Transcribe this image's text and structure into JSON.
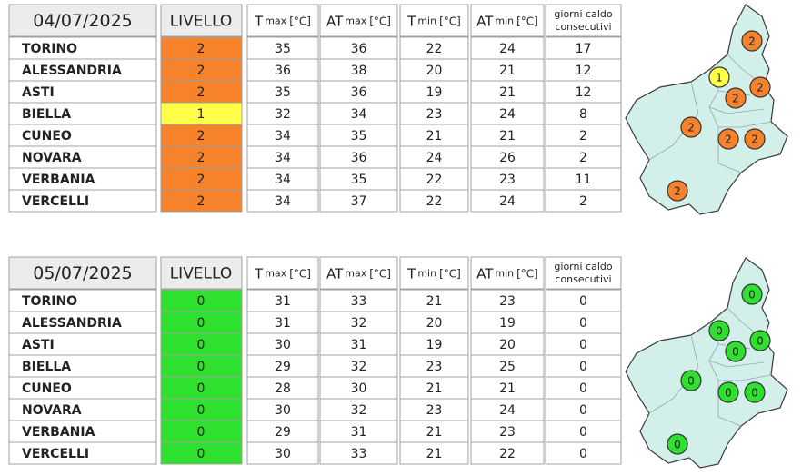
{
  "level_colors": {
    "0": "#2fe02f",
    "1": "#ffff4a",
    "2": "#f6822c"
  },
  "headers": {
    "level": "LIVELLO",
    "tmax": {
      "base": "T",
      "sub": "max",
      "unit": "[°C]"
    },
    "atmax": {
      "base": "AT",
      "sub": "max",
      "unit": "[°C]"
    },
    "tmin": {
      "base": "T",
      "sub": "min",
      "unit": "[°C]"
    },
    "atmin": {
      "base": "AT",
      "sub": "min",
      "unit": "[°C]"
    },
    "days": [
      "giorni caldo",
      "consecutivi"
    ]
  },
  "tables": [
    {
      "date": "04/07/2025",
      "rows": [
        {
          "city": "TORINO",
          "level": 2,
          "tmax": 35,
          "atmax": 36,
          "tmin": 22,
          "atmin": 24,
          "days": 17
        },
        {
          "city": "ALESSANDRIA",
          "level": 2,
          "tmax": 36,
          "atmax": 38,
          "tmin": 20,
          "atmin": 21,
          "days": 12
        },
        {
          "city": "ASTI",
          "level": 2,
          "tmax": 35,
          "atmax": 36,
          "tmin": 19,
          "atmin": 21,
          "days": 12
        },
        {
          "city": "BIELLA",
          "level": 1,
          "tmax": 32,
          "atmax": 34,
          "tmin": 23,
          "atmin": 24,
          "days": 8
        },
        {
          "city": "CUNEO",
          "level": 2,
          "tmax": 34,
          "atmax": 35,
          "tmin": 21,
          "atmin": 21,
          "days": 2
        },
        {
          "city": "NOVARA",
          "level": 2,
          "tmax": 34,
          "atmax": 36,
          "tmin": 24,
          "atmin": 26,
          "days": 2
        },
        {
          "city": "VERBANIA",
          "level": 2,
          "tmax": 34,
          "atmax": 35,
          "tmin": 22,
          "atmin": 23,
          "days": 11
        },
        {
          "city": "VERCELLI",
          "level": 2,
          "tmax": 34,
          "atmax": 37,
          "tmin": 22,
          "atmin": 24,
          "days": 2
        }
      ]
    },
    {
      "date": "05/07/2025",
      "rows": [
        {
          "city": "TORINO",
          "level": 0,
          "tmax": 31,
          "atmax": 33,
          "tmin": 21,
          "atmin": 23,
          "days": 0
        },
        {
          "city": "ALESSANDRIA",
          "level": 0,
          "tmax": 31,
          "atmax": 32,
          "tmin": 20,
          "atmin": 19,
          "days": 0
        },
        {
          "city": "ASTI",
          "level": 0,
          "tmax": 30,
          "atmax": 31,
          "tmin": 19,
          "atmin": 20,
          "days": 0
        },
        {
          "city": "BIELLA",
          "level": 0,
          "tmax": 29,
          "atmax": 32,
          "tmin": 23,
          "atmin": 25,
          "days": 0
        },
        {
          "city": "CUNEO",
          "level": 0,
          "tmax": 28,
          "atmax": 30,
          "tmin": 21,
          "atmin": 21,
          "days": 0
        },
        {
          "city": "NOVARA",
          "level": 0,
          "tmax": 30,
          "atmax": 32,
          "tmin": 23,
          "atmin": 24,
          "days": 0
        },
        {
          "city": "VERBANIA",
          "level": 0,
          "tmax": 29,
          "atmax": 31,
          "tmin": 21,
          "atmin": 23,
          "days": 0
        },
        {
          "city": "VERCELLI",
          "level": 0,
          "tmax": 30,
          "atmax": 33,
          "tmin": 21,
          "atmin": 22,
          "days": 0
        }
      ]
    }
  ]
}
